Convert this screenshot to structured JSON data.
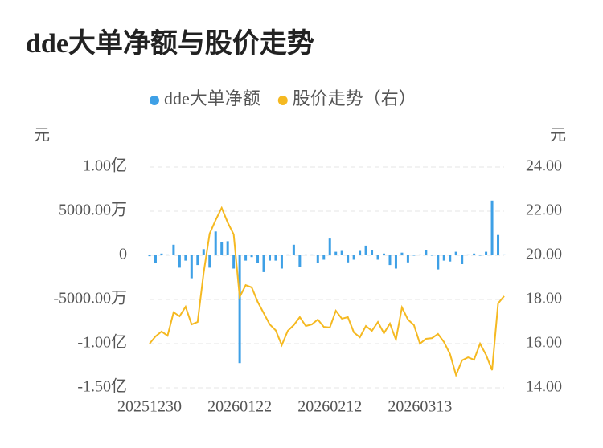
{
  "chart_data": {
    "type": "bar-line",
    "title": "dde大单净额与股价走势",
    "y_label": "元",
    "y2_label": "元",
    "categories": [
      "20251230",
      null,
      null,
      null,
      null,
      null,
      null,
      null,
      null,
      null,
      null,
      null,
      null,
      null,
      null,
      "20260122",
      null,
      null,
      null,
      null,
      null,
      null,
      null,
      null,
      null,
      null,
      null,
      null,
      null,
      null,
      "20260212",
      null,
      null,
      null,
      null,
      null,
      null,
      null,
      null,
      null,
      null,
      null,
      null,
      null,
      null,
      "20260313",
      null,
      null,
      null,
      null,
      null,
      null,
      null,
      null,
      null,
      null,
      null,
      null,
      null,
      null
    ],
    "series": [
      {
        "name": "dde大单净额",
        "color": "#3ea0e6",
        "type": "bar",
        "values": [
          -1000000,
          -9000000,
          2000000,
          1000000,
          12000000,
          -14000000,
          -6000000,
          -26000000,
          -11000000,
          7000000,
          -14000000,
          27000000,
          15000000,
          16000000,
          -15000000,
          -122000000,
          -6000000,
          -2000000,
          -9000000,
          -19000000,
          -6000000,
          -6000000,
          -15000000,
          1000000,
          12000000,
          -13000000,
          1000000,
          1000000,
          -9000000,
          -5000000,
          19000000,
          4000000,
          5000000,
          -8000000,
          -5000000,
          5000000,
          11000000,
          6000000,
          -5000000,
          2000000,
          -11000000,
          -15000000,
          3000000,
          -8000000,
          0,
          1000000,
          6000000,
          0,
          -16000000,
          -6000000,
          -7000000,
          4000000,
          -10000000,
          1000000,
          2000000,
          0,
          4000000,
          62000000,
          23000000,
          1000000
        ]
      },
      {
        "name": "股价走势（右）",
        "color": "#f5b921",
        "type": "line",
        "axis": "y2",
        "values": [
          16.0,
          16.33,
          16.55,
          16.36,
          17.42,
          17.24,
          17.67,
          16.87,
          16.98,
          19.2,
          20.98,
          21.6,
          22.15,
          21.49,
          20.95,
          18.11,
          18.65,
          18.55,
          17.89,
          17.38,
          16.87,
          16.6,
          15.93,
          16.58,
          16.84,
          17.2,
          16.8,
          16.87,
          17.09,
          16.76,
          16.73,
          17.49,
          17.13,
          17.2,
          16.51,
          16.29,
          16.8,
          16.58,
          16.98,
          16.47,
          16.91,
          16.18,
          17.64,
          17.09,
          16.84,
          16.0,
          16.22,
          16.25,
          16.44,
          16.07,
          15.53,
          14.58,
          15.24,
          15.38,
          15.27,
          16.0,
          15.49,
          14.8,
          17.82,
          18.15
        ]
      }
    ],
    "ylim": [
      -150000000,
      100000000
    ],
    "yticks": [
      {
        "value": -150000000,
        "label": "-1.50亿"
      },
      {
        "value": -100000000,
        "label": "-1.00亿"
      },
      {
        "value": -50000000,
        "label": "-5000.00万"
      },
      0,
      {
        "value": 50000000,
        "label": "5000.00万"
      },
      {
        "value": 100000000,
        "label": "1.00亿"
      }
    ],
    "y2lim": [
      14,
      24
    ],
    "y2ticks": [
      {
        "value": 14,
        "label": "14.00"
      },
      {
        "value": 16,
        "label": "16.00"
      },
      {
        "value": 18,
        "label": "18.00"
      },
      {
        "value": 20,
        "label": "20.00"
      },
      {
        "value": 22,
        "label": "22.00"
      },
      {
        "value": 24,
        "label": "24.00"
      }
    ],
    "grid": true
  }
}
